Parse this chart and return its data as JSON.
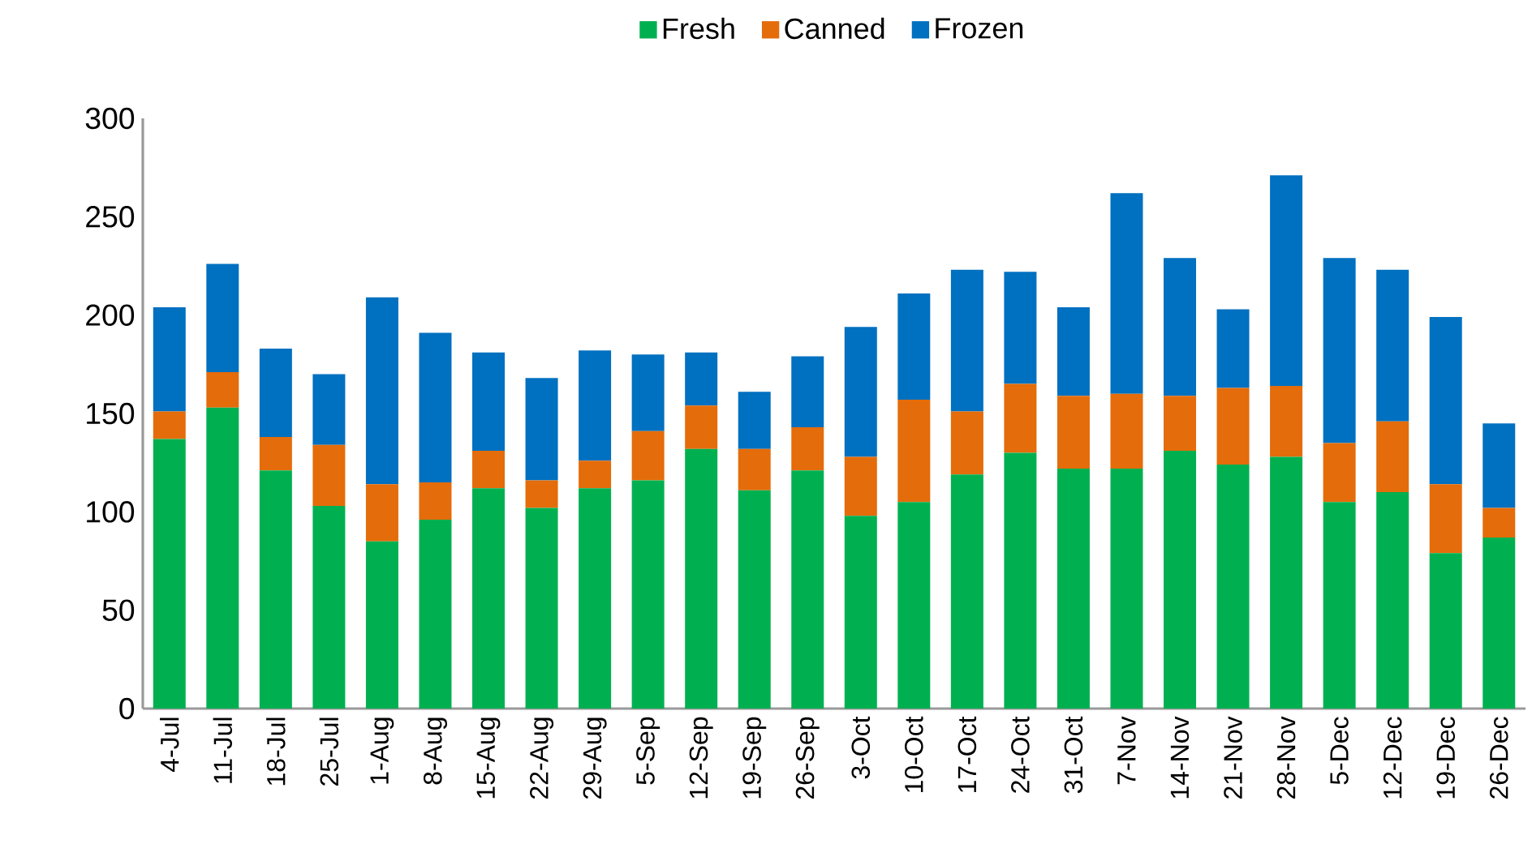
{
  "chart_data": {
    "type": "bar",
    "stacked": true,
    "categories": [
      "4-Jul",
      "11-Jul",
      "18-Jul",
      "25-Jul",
      "1-Aug",
      "8-Aug",
      "15-Aug",
      "22-Aug",
      "29-Aug",
      "5-Sep",
      "12-Sep",
      "19-Sep",
      "26-Sep",
      "3-Oct",
      "10-Oct",
      "17-Oct",
      "24-Oct",
      "31-Oct",
      "7-Nov",
      "14-Nov",
      "21-Nov",
      "28-Nov",
      "5-Dec",
      "12-Dec",
      "19-Dec",
      "26-Dec"
    ],
    "series": [
      {
        "name": "Fresh",
        "color": "#00b050",
        "values": [
          137,
          153,
          121,
          103,
          85,
          96,
          112,
          102,
          112,
          116,
          132,
          111,
          121,
          98,
          105,
          119,
          130,
          122,
          122,
          131,
          124,
          128,
          105,
          110,
          79,
          87
        ]
      },
      {
        "name": "Canned",
        "color": "#e46c0a",
        "values": [
          14,
          18,
          17,
          31,
          29,
          19,
          19,
          14,
          14,
          25,
          22,
          21,
          22,
          30,
          52,
          32,
          35,
          37,
          38,
          28,
          39,
          36,
          30,
          36,
          35,
          15
        ]
      },
      {
        "name": "Frozen",
        "color": "#0070c0",
        "values": [
          53,
          55,
          45,
          36,
          95,
          76,
          50,
          52,
          56,
          39,
          27,
          29,
          36,
          66,
          54,
          72,
          57,
          45,
          102,
          70,
          40,
          107,
          94,
          77,
          85,
          43
        ]
      }
    ],
    "ylim": [
      0,
      300
    ],
    "yticks": [
      0,
      50,
      100,
      150,
      200,
      250,
      300
    ],
    "legend": "top",
    "grid": false
  }
}
